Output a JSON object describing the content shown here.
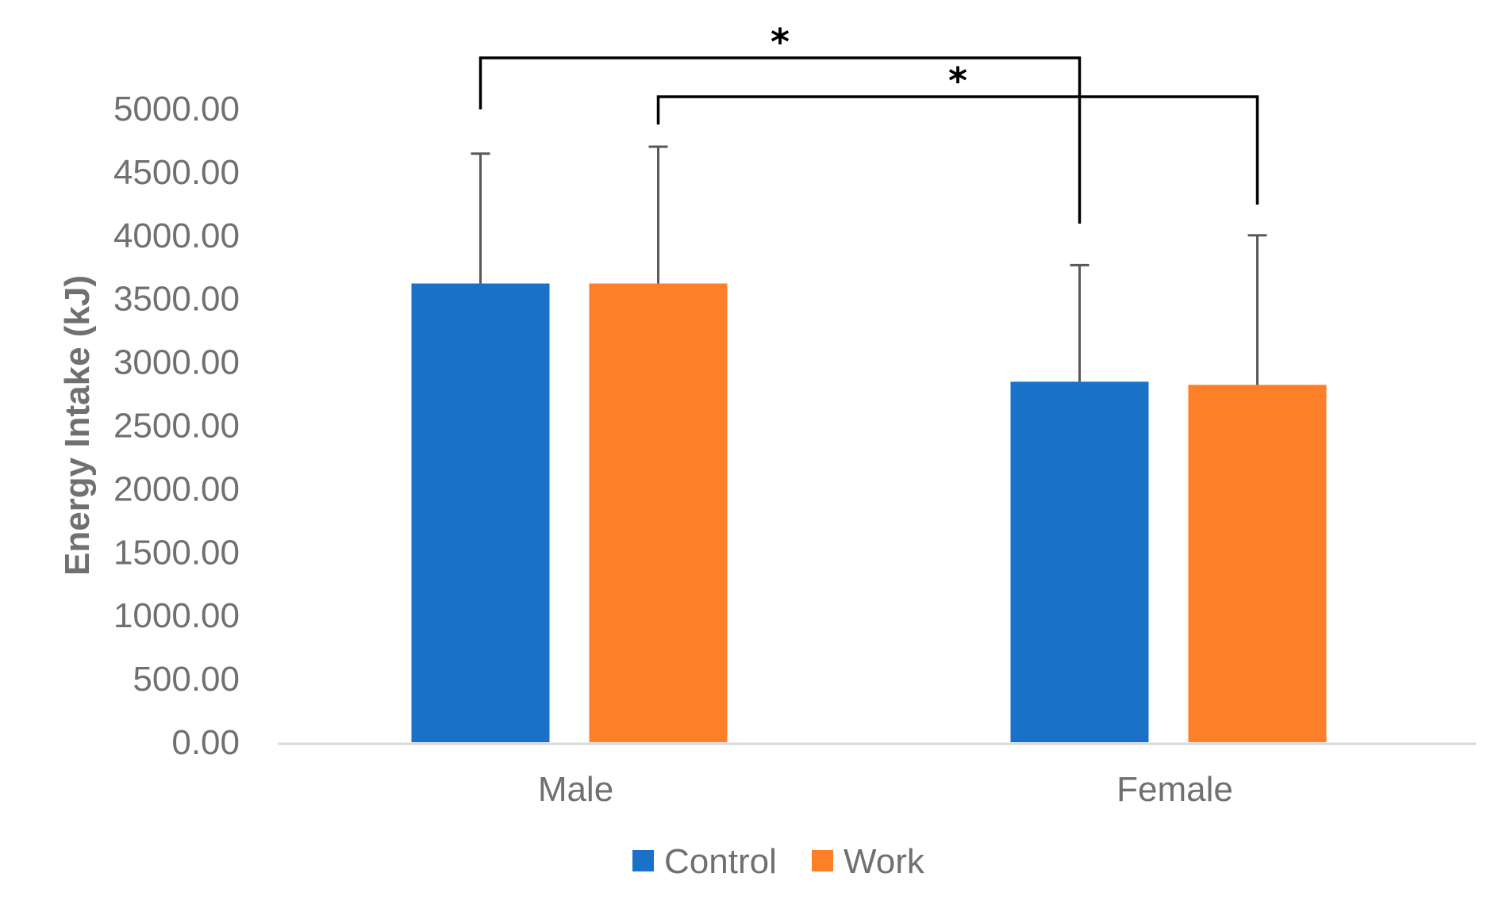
{
  "chart_data": {
    "type": "bar",
    "title": "",
    "xlabel": "",
    "ylabel": "Energy Intake  (kJ)",
    "categories": [
      "Male",
      "Female"
    ],
    "ylim": [
      0,
      5000
    ],
    "yticks": [
      0,
      500,
      1000,
      1500,
      2000,
      2500,
      3000,
      3500,
      4000,
      4500,
      5000
    ],
    "ytick_labels": [
      "0.00",
      "500.00",
      "1000.00",
      "1500.00",
      "2000.00",
      "2500.00",
      "3000.00",
      "3500.00",
      "4000.00",
      "4500.00",
      "5000.00"
    ],
    "series": [
      {
        "name": "Control",
        "color": "#1A72C8",
        "values": [
          3620,
          2845
        ],
        "error_upper": [
          1025,
          920
        ]
      },
      {
        "name": "Work",
        "color": "#FD7F28",
        "values": [
          3620,
          2820
        ],
        "error_upper": [
          1080,
          1180
        ]
      }
    ],
    "significance": [
      {
        "label": "*",
        "from": {
          "category": 0,
          "series": 0
        },
        "to": {
          "category": 1,
          "series": 0
        }
      },
      {
        "label": "*",
        "from": {
          "category": 0,
          "series": 1
        },
        "to": {
          "category": 1,
          "series": 1
        }
      }
    ],
    "legend_position": "bottom-center",
    "grid": false
  }
}
